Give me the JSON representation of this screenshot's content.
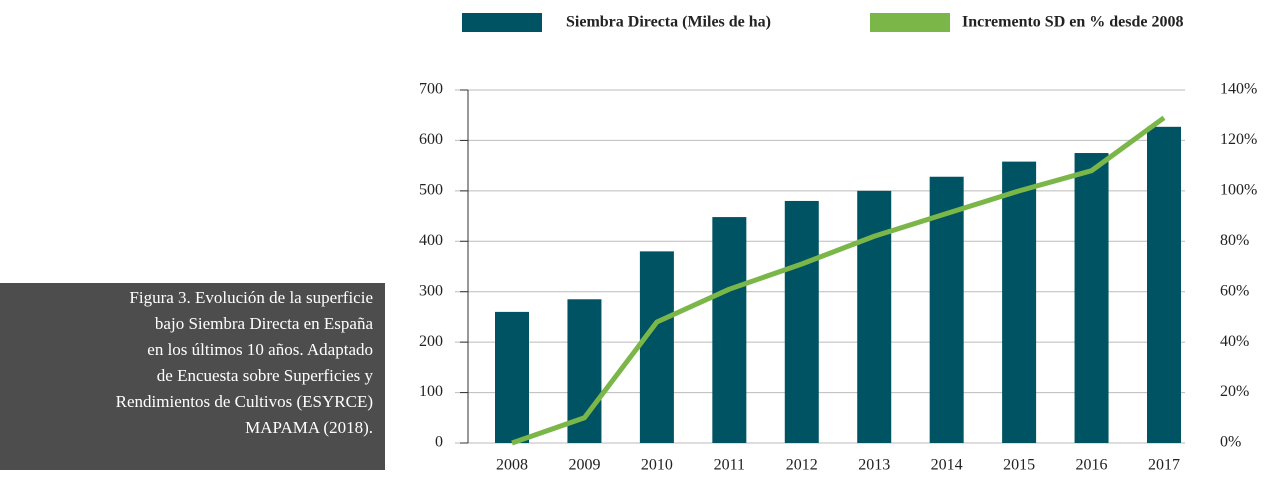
{
  "chart_data": {
    "type": "combo",
    "caption": [
      "Figura 3. Evolución de la superficie",
      "bajo Siembra Directa en España",
      "en los últimos 10 años. Adaptado",
      "de Encuesta sobre Superficies y",
      "Rendimientos de Cultivos (ESYRCE)",
      "MAPAMA (2018)."
    ],
    "categories": [
      "2008",
      "2009",
      "2010",
      "2011",
      "2012",
      "2013",
      "2014",
      "2015",
      "2016",
      "2017"
    ],
    "series": [
      {
        "name": "Siembra Directa (Miles de ha)",
        "type": "bar",
        "color": "#005363",
        "axis": "y",
        "values": [
          260,
          285,
          380,
          448,
          480,
          500,
          528,
          558,
          575,
          627
        ]
      },
      {
        "name": "Incremento SD en % desde 2008",
        "type": "line",
        "color": "#7ab648",
        "axis": "y2",
        "values": [
          0,
          10,
          48,
          61,
          71,
          82,
          91,
          100,
          108,
          129
        ]
      }
    ],
    "ylim": [
      0,
      700
    ],
    "yticks": [
      0,
      100,
      200,
      300,
      400,
      500,
      600,
      700
    ],
    "y2lim": [
      0,
      140
    ],
    "y2ticks": [
      {
        "value": 0,
        "label": "0%"
      },
      {
        "value": 20,
        "label": "20%"
      },
      {
        "value": 40,
        "label": "40%"
      },
      {
        "value": 60,
        "label": "60%"
      },
      {
        "value": 80,
        "label": "80%"
      },
      {
        "value": 100,
        "label": "100%"
      },
      {
        "value": 120,
        "label": "120%"
      },
      {
        "value": 140,
        "label": "140%"
      }
    ],
    "grid": true,
    "legend": "top"
  }
}
